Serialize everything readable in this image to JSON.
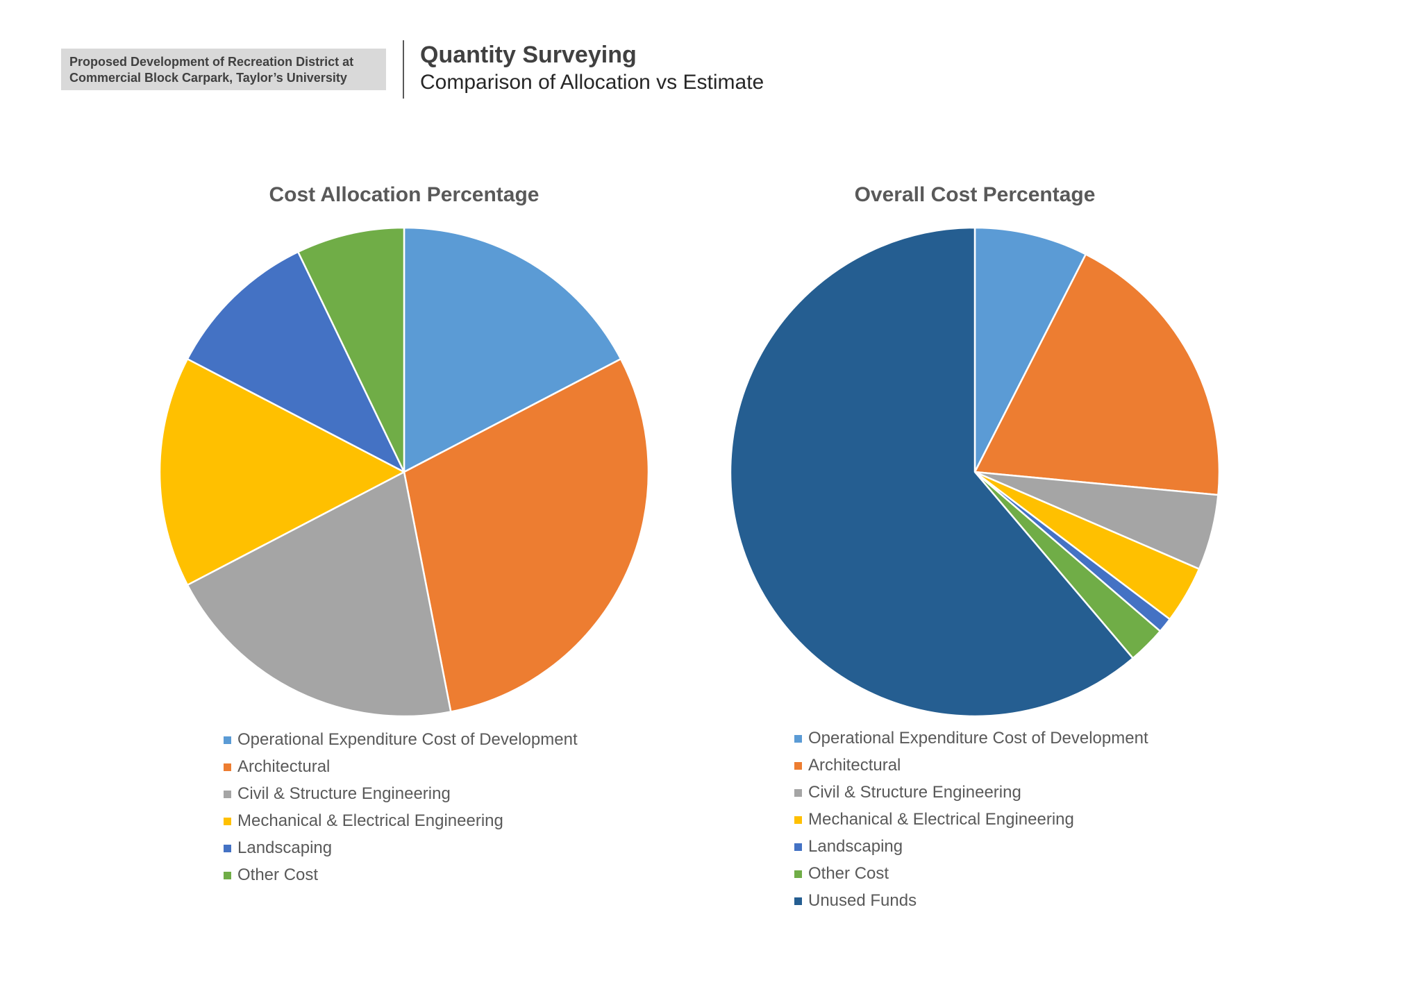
{
  "header": {
    "project_line1": "Proposed Development of Recreation District at",
    "project_line2": "Commercial Block Carpark, Taylor’s University",
    "title": "Quantity Surveying",
    "subtitle": "Comparison of Allocation vs Estimate"
  },
  "chart_data": [
    {
      "type": "pie",
      "title": "Cost Allocation Percentage",
      "legend_position": "bottom",
      "categories": [
        "Operational Expenditure Cost of Development",
        "Architectural",
        "Civil & Structure Engineering",
        "Mechanical & Electrical Engineering",
        "Landscaping",
        "Other Cost"
      ],
      "values": [
        17,
        29,
        20,
        15,
        10,
        7
      ],
      "colors": [
        "#5b9bd5",
        "#ed7d31",
        "#a5a5a5",
        "#ffc000",
        "#4472c4",
        "#70ad47"
      ]
    },
    {
      "type": "pie",
      "title": "Overall Cost Percentage",
      "legend_position": "bottom",
      "categories": [
        "Operational Expenditure Cost of Development",
        "Architectural",
        "Civil & Structure Engineering",
        "Mechanical & Electrical Engineering",
        "Landscaping",
        "Other Cost",
        "Unused Funds"
      ],
      "values": [
        7.5,
        19,
        5,
        3.8,
        1,
        2.5,
        61.2
      ],
      "colors": [
        "#5b9bd5",
        "#ed7d31",
        "#a5a5a5",
        "#ffc000",
        "#4472c4",
        "#70ad47",
        "#255e91"
      ]
    }
  ]
}
